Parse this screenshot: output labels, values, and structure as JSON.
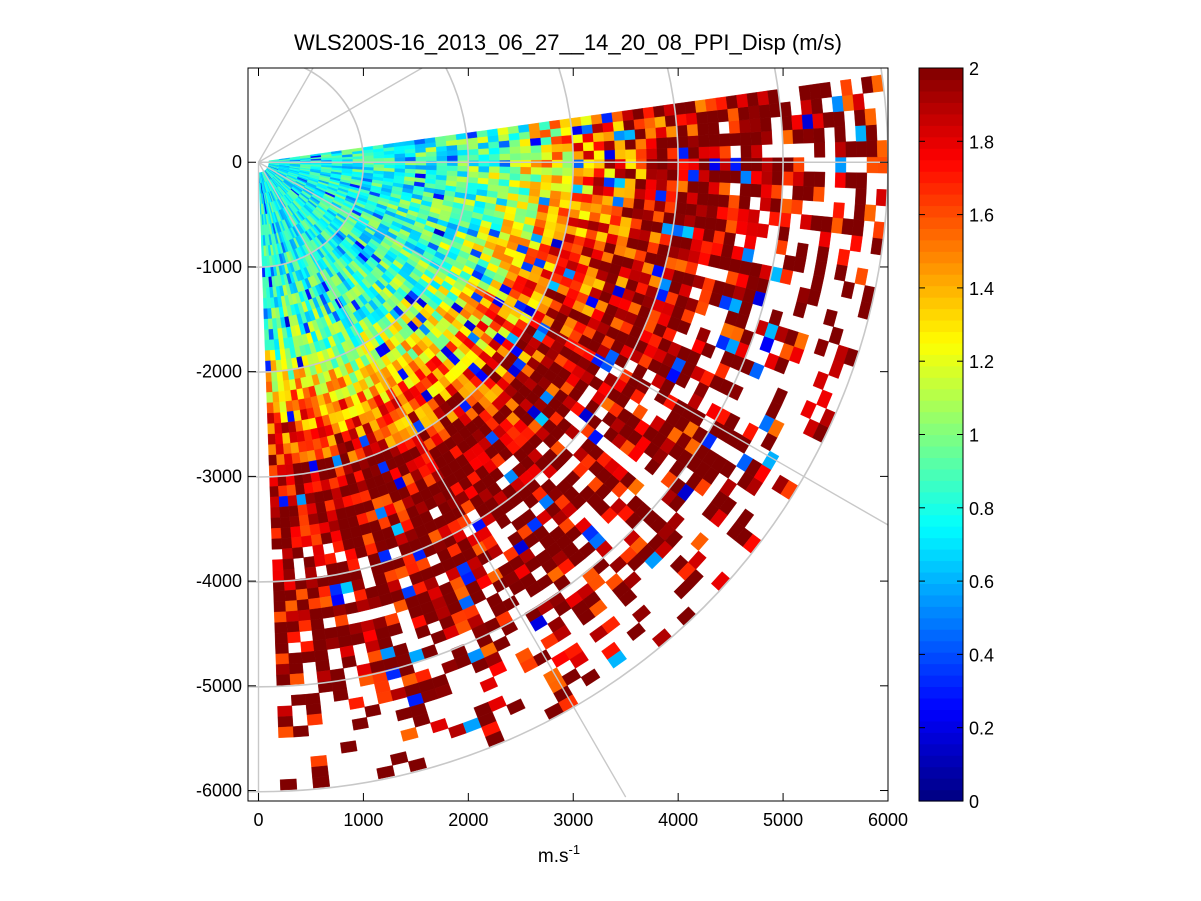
{
  "chart_data": {
    "type": "heatmap",
    "subtype": "polar-ppi-scan",
    "title": "WLS200S-16_2013_06_27__14_20_08_PPI_Disp (m/s)",
    "xlabel": "m.s",
    "xlabel_superscript": "-1",
    "ylabel": "",
    "xlim": [
      -100,
      6000
    ],
    "ylim": [
      -6100,
      900
    ],
    "x_ticks": [
      0,
      1000,
      2000,
      3000,
      4000,
      5000,
      6000
    ],
    "y_ticks": [
      0,
      -1000,
      -2000,
      -3000,
      -4000,
      -5000,
      -6000
    ],
    "x_tick_labels": [
      "0",
      "1000",
      "2000",
      "3000",
      "4000",
      "5000",
      "6000"
    ],
    "y_tick_labels": [
      "0",
      "-1000",
      "-2000",
      "-3000",
      "-4000",
      "-5000",
      "-6000"
    ],
    "colorbar": {
      "colormap": "jet",
      "range": [
        0,
        2
      ],
      "ticks": [
        0,
        0.2,
        0.4,
        0.6,
        0.8,
        1,
        1.2,
        1.4,
        1.6,
        1.8,
        2
      ],
      "tick_labels": [
        "0",
        "0.2",
        "0.4",
        "0.6",
        "0.8",
        "1",
        "1.2",
        "1.4",
        "1.6",
        "1.8",
        "2"
      ]
    },
    "scan": {
      "origin": [
        0,
        0
      ],
      "azimuth_range_deg": [
        -88,
        7
      ],
      "range_max_m": 6000,
      "range_gate_m": 100,
      "azimuth_step_deg": 1.5
    },
    "grid": {
      "range_rings_m": [
        1000,
        2000,
        3000,
        4000,
        5000,
        6000
      ],
      "azimuth_spokes_deg": [
        -90,
        -60,
        -30,
        0,
        30,
        60
      ],
      "color": "#c8c8c8"
    },
    "value_profile": {
      "range_m": [
        0,
        1000,
        2000,
        2500,
        3000,
        3500,
        4000,
        4500,
        5000,
        6000
      ],
      "typical_value_m_s": [
        0.75,
        0.8,
        0.9,
        1.1,
        1.45,
        1.7,
        1.9,
        2.0,
        2.0,
        2.0
      ],
      "south_sector_offset": 0.35,
      "missing_fraction_far": 0.55
    }
  }
}
